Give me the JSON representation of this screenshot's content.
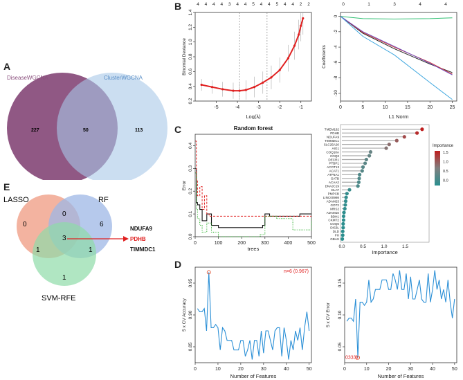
{
  "panels": {
    "A": "A",
    "B": "B",
    "C": "C",
    "D": "D",
    "E": "E"
  },
  "venn_wgcna": {
    "label_left": "DiseaseWGCNA",
    "label_right": "ClusterWGCNA",
    "left_only": "227",
    "overlap": "50",
    "right_only": "113",
    "color_left": "#8a4f7d",
    "color_right": "#a9c8e8"
  },
  "venn3": {
    "label_lasso": "LASSO",
    "label_rf": "RF",
    "label_svm": "SVM-RFE",
    "lasso_only": "0",
    "rf_only": "6",
    "svm_only": "1",
    "lasso_rf": "0",
    "lasso_svm": "1",
    "rf_svm": "1",
    "all_three": "3",
    "genes": [
      "NDUFA9",
      "PDHB",
      "TIMMDC1"
    ],
    "highlight_color": "#e02020"
  },
  "chart_data": [
    {
      "type": "line",
      "name": "lasso-cv",
      "xlabel": "Log(λ)",
      "ylabel": "Binomial Deviance",
      "xlim": [
        -6,
        -0.5
      ],
      "ylim": [
        0.2,
        1.4
      ],
      "xticks": [
        "-5",
        "-4",
        "-3",
        "-2",
        "-1"
      ],
      "yticks": [
        "0.2",
        "0.4",
        "0.6",
        "0.8",
        "1.0",
        "1.2",
        "1.4"
      ],
      "top_ticks": [
        "4",
        "4",
        "4",
        "4",
        "3",
        "4",
        "4",
        "5",
        "4",
        "4",
        "5",
        "4",
        "4",
        "2",
        "2"
      ],
      "vlines": [
        -3.9,
        -2.6
      ],
      "x": [
        -5.7,
        -5.2,
        -4.7,
        -4.2,
        -3.9,
        -3.6,
        -3.2,
        -2.8,
        -2.4,
        -2.0,
        -1.6,
        -1.3,
        -1.1,
        -1.0,
        -0.9
      ],
      "y": [
        0.42,
        0.39,
        0.36,
        0.34,
        0.34,
        0.35,
        0.39,
        0.45,
        0.52,
        0.62,
        0.78,
        0.95,
        1.1,
        1.22,
        1.32
      ]
    },
    {
      "type": "line",
      "name": "lasso-coef",
      "xlabel": "L1 Norm",
      "ylabel": "Coefficients",
      "xlim": [
        0,
        26
      ],
      "ylim": [
        -11,
        0.5
      ],
      "xticks": [
        "0",
        "5",
        "10",
        "15",
        "20",
        "25"
      ],
      "yticks": [
        "0",
        "-2",
        "-4",
        "-6",
        "-8",
        "-10"
      ],
      "top_ticks": [
        "0",
        "1",
        "3",
        "4",
        "4"
      ],
      "series": [
        {
          "name": "path-green",
          "color": "#2fbf71",
          "x": [
            0,
            5,
            12,
            20,
            25
          ],
          "y": [
            0,
            -0.3,
            -0.35,
            -0.3,
            -0.2
          ]
        },
        {
          "name": "path-black",
          "color": "#222222",
          "x": [
            0,
            5,
            12,
            20,
            25
          ],
          "y": [
            0,
            -2.2,
            -4.2,
            -6.2,
            -7.3
          ]
        },
        {
          "name": "path-red",
          "color": "#d23a3a",
          "x": [
            0,
            5,
            12,
            20,
            25
          ],
          "y": [
            0,
            -2.1,
            -4.0,
            -6.0,
            -7.5
          ]
        },
        {
          "name": "path-purple",
          "color": "#6f4fc0",
          "x": [
            0,
            5,
            12,
            20,
            25
          ],
          "y": [
            0,
            -2.0,
            -3.9,
            -6.1,
            -7.6
          ]
        },
        {
          "name": "path-cyan",
          "color": "#3fa7df",
          "x": [
            0,
            5,
            12,
            20,
            25
          ],
          "y": [
            0,
            -2.6,
            -5.0,
            -8.6,
            -10.8
          ]
        }
      ]
    },
    {
      "type": "line",
      "name": "random-forest-error",
      "title": "Random forest",
      "xlabel": "trees",
      "ylabel": "Error",
      "xlim": [
        0,
        500
      ],
      "ylim": [
        0,
        0.45
      ],
      "xticks": [
        "0",
        "100",
        "200",
        "300",
        "400",
        "500"
      ],
      "yticks": [
        "0.0",
        "0.1",
        "0.2",
        "0.3",
        "0.4"
      ],
      "series": [
        {
          "name": "oob",
          "color": "#111111",
          "x": [
            1,
            5,
            10,
            20,
            30,
            50,
            70,
            100,
            150,
            200,
            250,
            290,
            300,
            320,
            400,
            450,
            500
          ],
          "y": [
            0.3,
            0.15,
            0.14,
            0.12,
            0.07,
            0.1,
            0.05,
            0.04,
            0.04,
            0.04,
            0.04,
            0.05,
            0.1,
            0.09,
            0.09,
            0.1,
            0.1
          ]
        },
        {
          "name": "class-1",
          "color": "#e02020",
          "x": [
            1,
            5,
            10,
            20,
            30,
            40,
            50,
            60,
            100,
            500
          ],
          "y": [
            0.42,
            0.25,
            0.18,
            0.22,
            0.12,
            0.18,
            0.1,
            0.09,
            0.09,
            0.09
          ]
        },
        {
          "name": "class-0",
          "color": "#22aa22",
          "x": [
            1,
            5,
            10,
            20,
            30,
            50,
            70,
            100,
            200,
            280,
            300,
            350,
            400,
            420,
            500
          ],
          "y": [
            0.28,
            0.12,
            0.08,
            0.05,
            0.02,
            0.06,
            0.02,
            0.0,
            0.0,
            0.01,
            0.09,
            0.08,
            0.08,
            0.03,
            0.08
          ]
        }
      ]
    },
    {
      "type": "bar",
      "name": "rf-importance",
      "xlabel": "Importance",
      "legend_title": "Importance",
      "xticks": [
        "0.0",
        "0.5",
        "1.0",
        "1.5"
      ],
      "legend_ticks": [
        "1.5",
        "1.0",
        "0.5",
        "0.0"
      ],
      "categories": [
        "TMEM182",
        "PDHB",
        "NDUFA9",
        "TIMMDC1",
        "SLC25A20",
        "AIG1",
        "COQ10A",
        "COQ3",
        "DECR1",
        "PTBP1",
        "ACOT13",
        "ACAT1",
        "ATP5A1",
        "GATB",
        "ACAA2",
        "DNAJC19",
        "DLAT",
        "PMPCB",
        "LINC00998",
        "ADAM23",
        "GOT2",
        "MRS2",
        "ADAM10",
        "BDH1",
        "CKMT2",
        "COQ6",
        "DIS3L",
        "DLD",
        "FH",
        "GBAS"
      ],
      "values": [
        1.9,
        1.78,
        1.48,
        1.3,
        1.12,
        1.05,
        0.68,
        0.65,
        0.58,
        0.55,
        0.5,
        0.48,
        0.42,
        0.41,
        0.4,
        0.38,
        0.18,
        0.12,
        0.1,
        0.09,
        0.08,
        0.07,
        0.05,
        0.04,
        0.04,
        0.03,
        0.03,
        0.02,
        0.02,
        0.01
      ]
    },
    {
      "type": "line",
      "name": "svm-accuracy",
      "xlabel": "Number of Features",
      "ylabel": "5 x CV Accuracy",
      "annotation": "n=6 (0.967)",
      "xlim": [
        0,
        51
      ],
      "ylim": [
        0.825,
        0.975
      ],
      "xticks": [
        "0",
        "10",
        "20",
        "30",
        "40",
        "50"
      ],
      "yticks": [
        "0.85",
        "0.90",
        "0.95"
      ],
      "x": [
        1,
        2,
        3,
        4,
        5,
        6,
        7,
        8,
        9,
        10,
        11,
        12,
        13,
        14,
        15,
        16,
        17,
        18,
        19,
        20,
        21,
        22,
        23,
        24,
        25,
        26,
        27,
        28,
        29,
        30,
        31,
        32,
        33,
        34,
        35,
        36,
        37,
        38,
        39,
        40,
        41,
        42,
        43,
        44,
        45,
        46,
        47,
        48,
        49,
        50
      ],
      "y": [
        0.91,
        0.905,
        0.905,
        0.91,
        0.875,
        0.967,
        0.88,
        0.88,
        0.885,
        0.88,
        0.845,
        0.88,
        0.875,
        0.86,
        0.86,
        0.86,
        0.845,
        0.845,
        0.845,
        0.86,
        0.86,
        0.835,
        0.845,
        0.86,
        0.83,
        0.86,
        0.86,
        0.835,
        0.875,
        0.84,
        0.875,
        0.875,
        0.86,
        0.845,
        0.875,
        0.88,
        0.88,
        0.835,
        0.88,
        0.86,
        0.83,
        0.86,
        0.845,
        0.875,
        0.86,
        0.88,
        0.845,
        0.88,
        0.905,
        0.875
      ]
    },
    {
      "type": "line",
      "name": "svm-error",
      "xlabel": "Number of Features",
      "ylabel": "5 x CV Error",
      "annotation": "0333)",
      "xlim": [
        0,
        51
      ],
      "ylim": [
        0.025,
        0.175
      ],
      "xticks": [
        "0",
        "10",
        "20",
        "30",
        "40",
        "50"
      ],
      "yticks": [
        "0.05",
        "0.10",
        "0.15"
      ],
      "x": [
        1,
        2,
        3,
        4,
        5,
        6,
        7,
        8,
        9,
        10,
        11,
        12,
        13,
        14,
        15,
        16,
        17,
        18,
        19,
        20,
        21,
        22,
        23,
        24,
        25,
        26,
        27,
        28,
        29,
        30,
        31,
        32,
        33,
        34,
        35,
        36,
        37,
        38,
        39,
        40,
        41,
        42,
        43,
        44,
        45,
        46,
        47,
        48,
        49,
        50
      ],
      "y": [
        0.09,
        0.095,
        0.095,
        0.09,
        0.125,
        0.033,
        0.12,
        0.12,
        0.115,
        0.12,
        0.155,
        0.12,
        0.125,
        0.14,
        0.14,
        0.14,
        0.155,
        0.155,
        0.155,
        0.14,
        0.14,
        0.165,
        0.155,
        0.14,
        0.17,
        0.14,
        0.14,
        0.165,
        0.125,
        0.16,
        0.125,
        0.125,
        0.14,
        0.155,
        0.125,
        0.12,
        0.12,
        0.165,
        0.12,
        0.14,
        0.17,
        0.14,
        0.155,
        0.125,
        0.14,
        0.12,
        0.155,
        0.12,
        0.095,
        0.125
      ]
    }
  ]
}
